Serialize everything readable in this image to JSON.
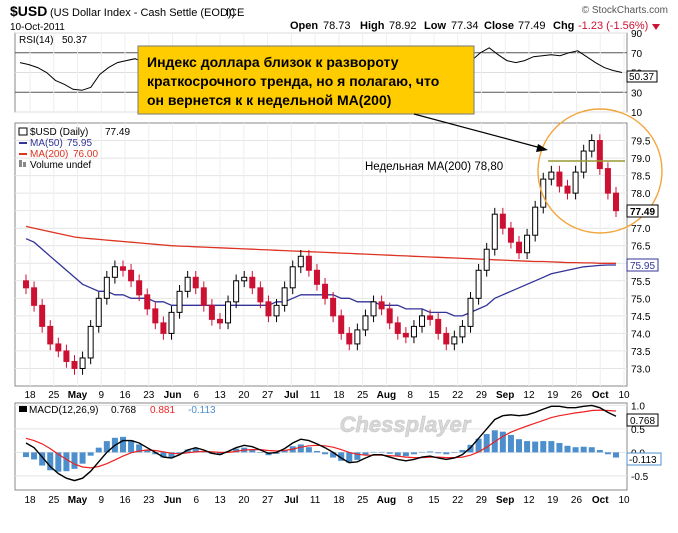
{
  "header": {
    "symbol": "$USD",
    "description": "(US Dollar Index - Cash Settle (EOD))",
    "exchange": "ICE",
    "date": "10-Oct-2011",
    "watermark": "© StockCharts.com",
    "quote": {
      "open_label": "Open",
      "open": "78.73",
      "high_label": "High",
      "high": "78.92",
      "low_label": "Low",
      "low": "77.34",
      "close_label": "Close",
      "close": "77.49",
      "chg_label": "Chg",
      "chg": "-1.23 (-1.56%)"
    }
  },
  "callout": {
    "line1": "Индекс доллара близок к развороту",
    "line2": "краткосрочного тренда, но я полагаю, что",
    "line3": "он вернется к к недельной MA(200)"
  },
  "weekly_ma_label": "Недельная MA(200) 78,80",
  "chessplayer_logo": "Chessplayer",
  "colors": {
    "up_candle": "#000000",
    "down_candle": "#cc1133",
    "ma50": "#333399",
    "ma200": "#dd3322",
    "callout_fill": "#ffcc00",
    "circle": "#f3a53c",
    "macd_hist": "#4c8fcc",
    "macd_line": "#000000",
    "signal_line": "#ee2222"
  },
  "chart_data": [
    {
      "type": "line",
      "panel": "RSI",
      "legend": {
        "label": "RSI(14)",
        "value": "50.37"
      },
      "ylim": [
        10,
        90
      ],
      "yticks": [
        10,
        30,
        50,
        70,
        90
      ],
      "last_value_tag": "50.37",
      "values": [
        60,
        58,
        55,
        50,
        42,
        38,
        33,
        32,
        35,
        48,
        55,
        60,
        62,
        64,
        60,
        55,
        50,
        45,
        43,
        42,
        48,
        55,
        58,
        60,
        57,
        55,
        52,
        50,
        48,
        47,
        46,
        50,
        55,
        58,
        60,
        55,
        52,
        50,
        47,
        44,
        43,
        47,
        52,
        55,
        54,
        50,
        46,
        44,
        45,
        49,
        55,
        62,
        70,
        75,
        68,
        62,
        60,
        62,
        66,
        67,
        68,
        67,
        70,
        72,
        66,
        60,
        55,
        52,
        50
      ]
    },
    {
      "type": "candlestick",
      "panel": "Price",
      "legend": [
        {
          "label": "$USD (Daily)",
          "value": "77.49"
        },
        {
          "label": "MA(50)",
          "value": "75.95"
        },
        {
          "label": "MA(200)",
          "value": "76.00"
        },
        {
          "label": "Volume undef",
          "value": ""
        }
      ],
      "ylim": [
        72.5,
        80.0
      ],
      "yticks": [
        "73.0",
        "73.5",
        "74.0",
        "74.5",
        "75.0",
        "75.5",
        "76.0",
        "76.5",
        "77.0",
        "77.5",
        "78.0",
        "78.5",
        "79.0",
        "79.5"
      ],
      "last_price_tag": "77.49",
      "ma50_tag": "75.95",
      "x_labels": [
        "18",
        "25",
        "May",
        "9",
        "16",
        "23",
        "Jun",
        "6",
        "13",
        "20",
        "27",
        "Jul",
        "11",
        "18",
        "25",
        "Aug",
        "8",
        "15",
        "22",
        "29",
        "Sep",
        "12",
        "19",
        "26",
        "Oct",
        "10"
      ],
      "close": [
        75.3,
        74.8,
        74.2,
        73.7,
        73.5,
        73.2,
        73.0,
        73.3,
        74.2,
        75.0,
        75.6,
        75.9,
        75.8,
        75.5,
        75.1,
        74.7,
        74.3,
        74.0,
        74.6,
        75.2,
        75.6,
        75.3,
        74.8,
        74.4,
        74.3,
        74.9,
        75.5,
        75.6,
        75.3,
        74.9,
        74.5,
        74.8,
        75.3,
        75.9,
        76.2,
        75.8,
        75.4,
        75.0,
        74.5,
        74.0,
        73.7,
        74.1,
        74.5,
        74.9,
        74.7,
        74.3,
        74.0,
        73.9,
        74.2,
        74.5,
        74.4,
        74.0,
        73.7,
        73.9,
        74.2,
        75.0,
        75.8,
        76.4,
        77.4,
        77.0,
        76.6,
        76.3,
        76.8,
        77.6,
        78.4,
        78.6,
        78.2,
        78.0,
        78.6,
        79.2,
        79.5,
        78.7,
        78.0,
        77.5
      ],
      "ma50": [
        76.7,
        76.6,
        76.4,
        76.2,
        76.0,
        75.8,
        75.6,
        75.4,
        75.3,
        75.2,
        75.2,
        75.1,
        75.1,
        75.0,
        75.0,
        75.0,
        74.9,
        74.9,
        74.8,
        74.8,
        74.8,
        74.8,
        74.8,
        74.8,
        74.8,
        74.8,
        74.8,
        74.8,
        74.8,
        74.8,
        74.8,
        74.9,
        74.9,
        75.0,
        75.1,
        75.1,
        75.1,
        75.1,
        75.1,
        75.0,
        75.0,
        74.9,
        74.9,
        74.9,
        74.8,
        74.8,
        74.8,
        74.7,
        74.7,
        74.7,
        74.6,
        74.6,
        74.6,
        74.5,
        74.5,
        74.6,
        74.7,
        74.8,
        75.0,
        75.1,
        75.2,
        75.3,
        75.4,
        75.5,
        75.6,
        75.7,
        75.75,
        75.8,
        75.85,
        75.9,
        75.92,
        75.94,
        75.95,
        75.95
      ],
      "ma200": [
        77.05,
        77.0,
        76.95,
        76.9,
        76.85,
        76.8,
        76.75,
        76.72,
        76.7,
        76.68,
        76.66,
        76.64,
        76.62,
        76.6,
        76.58,
        76.56,
        76.54,
        76.52,
        76.5,
        76.49,
        76.48,
        76.47,
        76.46,
        76.45,
        76.44,
        76.43,
        76.42,
        76.41,
        76.4,
        76.39,
        76.38,
        76.37,
        76.36,
        76.35,
        76.34,
        76.33,
        76.32,
        76.31,
        76.3,
        76.29,
        76.28,
        76.27,
        76.26,
        76.25,
        76.24,
        76.23,
        76.22,
        76.21,
        76.2,
        76.19,
        76.18,
        76.17,
        76.16,
        76.15,
        76.14,
        76.13,
        76.12,
        76.11,
        76.1,
        76.09,
        76.08,
        76.07,
        76.06,
        76.05,
        76.05,
        76.04,
        76.03,
        76.02,
        76.02,
        76.01,
        76.01,
        76.0,
        76.0,
        76.0
      ]
    },
    {
      "type": "line",
      "panel": "MACD",
      "legend": {
        "label": "MACD(12,26,9)",
        "macd": "0.768",
        "signal": "0.881",
        "histogram": "-0.113"
      },
      "ylim": [
        -0.8,
        1.05
      ],
      "yticks": [
        "1.0",
        "0.5",
        "0.0",
        "-0.5"
      ],
      "macd_tag": "0.768",
      "hist_tag": "-0.113",
      "macd": [
        0.2,
        0.1,
        -0.1,
        -0.3,
        -0.45,
        -0.55,
        -0.6,
        -0.55,
        -0.4,
        -0.2,
        0.0,
        0.15,
        0.25,
        0.25,
        0.2,
        0.1,
        0.0,
        -0.1,
        -0.12,
        -0.05,
        0.05,
        0.1,
        0.05,
        -0.02,
        -0.05,
        0.02,
        0.1,
        0.15,
        0.12,
        0.05,
        -0.02,
        0.0,
        0.08,
        0.2,
        0.28,
        0.25,
        0.18,
        0.1,
        0.0,
        -0.12,
        -0.22,
        -0.2,
        -0.12,
        -0.05,
        -0.05,
        -0.1,
        -0.15,
        -0.18,
        -0.15,
        -0.1,
        -0.08,
        -0.12,
        -0.15,
        -0.12,
        -0.05,
        0.1,
        0.3,
        0.5,
        0.7,
        0.78,
        0.8,
        0.78,
        0.8,
        0.85,
        0.92,
        0.98,
        0.98,
        0.95,
        0.95,
        0.98,
        1.0,
        0.95,
        0.85,
        0.77
      ],
      "signal": [
        0.3,
        0.25,
        0.18,
        0.08,
        -0.04,
        -0.15,
        -0.25,
        -0.31,
        -0.33,
        -0.3,
        -0.24,
        -0.16,
        -0.08,
        -0.01,
        0.03,
        0.05,
        0.04,
        0.01,
        -0.02,
        -0.03,
        -0.01,
        0.01,
        0.02,
        0.01,
        0.0,
        0.0,
        0.02,
        0.05,
        0.06,
        0.06,
        0.04,
        0.03,
        0.04,
        0.07,
        0.11,
        0.14,
        0.15,
        0.14,
        0.11,
        0.06,
        0.0,
        -0.04,
        -0.06,
        -0.06,
        -0.06,
        -0.07,
        -0.08,
        -0.1,
        -0.11,
        -0.11,
        -0.1,
        -0.1,
        -0.11,
        -0.11,
        -0.1,
        -0.06,
        0.01,
        0.11,
        0.23,
        0.34,
        0.43,
        0.5,
        0.56,
        0.62,
        0.68,
        0.74,
        0.78,
        0.81,
        0.84,
        0.86,
        0.89,
        0.9,
        0.89,
        0.88
      ],
      "x_labels": [
        "18",
        "25",
        "May",
        "9",
        "16",
        "23",
        "Jun",
        "6",
        "13",
        "20",
        "27",
        "Jul",
        "11",
        "18",
        "25",
        "Aug",
        "8",
        "15",
        "22",
        "29",
        "Sep",
        "12",
        "19",
        "26",
        "Oct",
        "10"
      ]
    }
  ]
}
